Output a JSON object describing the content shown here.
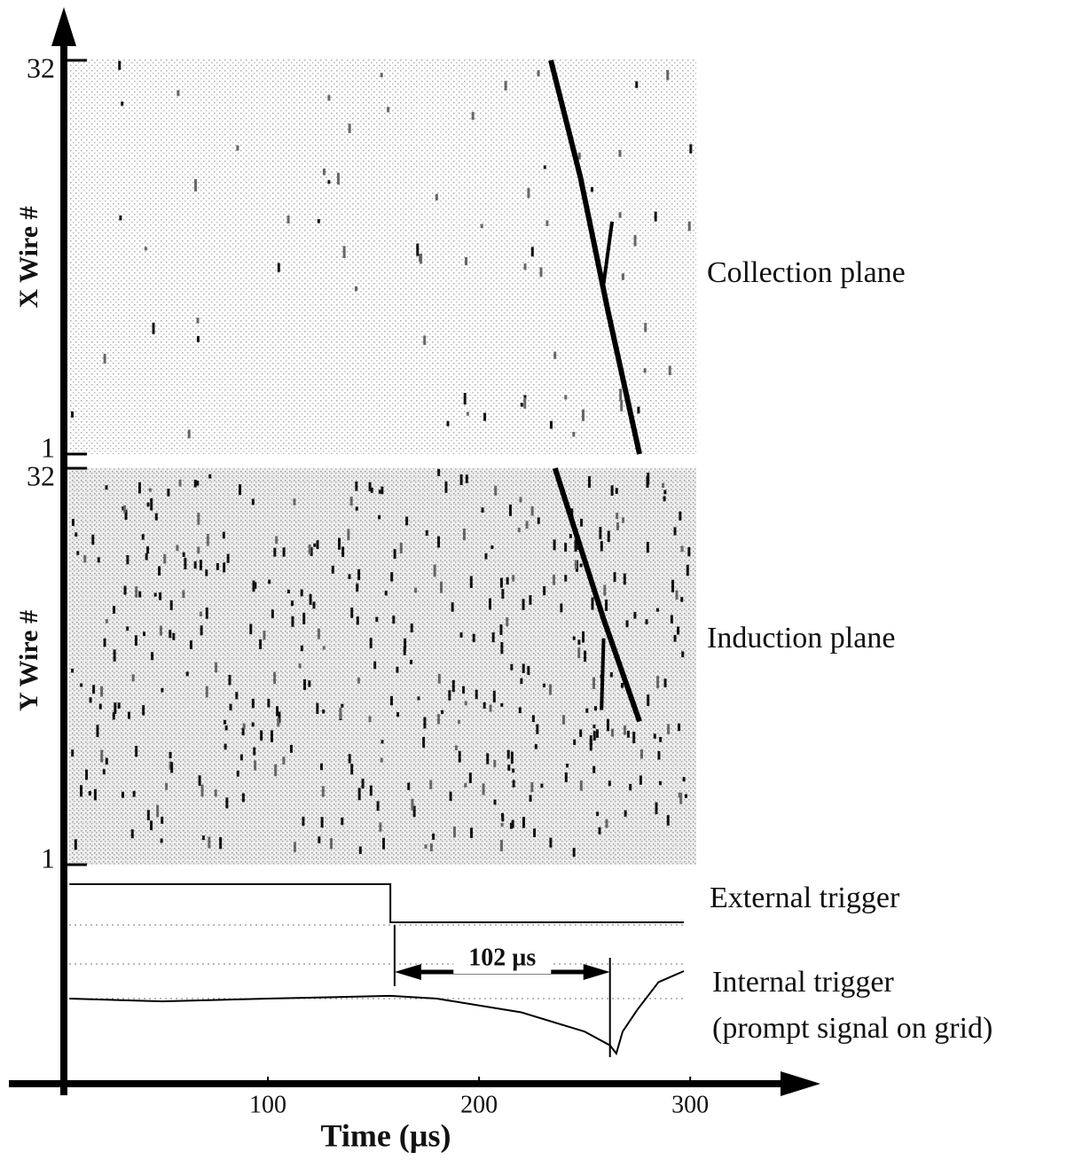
{
  "chart_data": {
    "type": "event-display",
    "x_label": "Time (µs)",
    "xlim": [
      0,
      360
    ],
    "xticks": [
      100,
      200,
      300
    ],
    "panels": [
      {
        "label": "Collection plane",
        "y_label": "X Wire #",
        "ylim": [
          1,
          32
        ],
        "yticks": [
          1,
          32
        ],
        "track": {
          "x": [
            234,
            248,
            261,
            276
          ],
          "y": [
            32,
            22.8,
            12.3,
            1
          ]
        },
        "branch": {
          "x": [
            263,
            259
          ],
          "y": [
            19.3,
            14.4
          ]
        }
      },
      {
        "label": "Induction plane",
        "y_label": "Y Wire #",
        "ylim": [
          1,
          32
        ],
        "yticks": [
          1,
          32
        ],
        "track": {
          "x": [
            236,
            259,
            276
          ],
          "y": [
            32,
            20.2,
            12.2
          ]
        },
        "branch": {
          "x": [
            259,
            258
          ],
          "y": [
            18.7,
            13.1
          ]
        }
      }
    ],
    "traces": [
      {
        "label": "External trigger",
        "x": [
          6,
          158,
          158,
          297
        ],
        "level": [
          1,
          1,
          0,
          0
        ]
      },
      {
        "label": "Internal trigger",
        "sublabel": "(prompt signal on grid)",
        "x": [
          6,
          50,
          100,
          158,
          180,
          220,
          250,
          262,
          265,
          268,
          275,
          285,
          297
        ],
        "level": [
          0,
          -0.05,
          0,
          0.05,
          0,
          -0.25,
          -0.6,
          -0.85,
          -1,
          -0.6,
          -0.2,
          0.3,
          0.5
        ]
      }
    ],
    "interval": {
      "label": "102 µs",
      "x": [
        160,
        262
      ]
    }
  }
}
